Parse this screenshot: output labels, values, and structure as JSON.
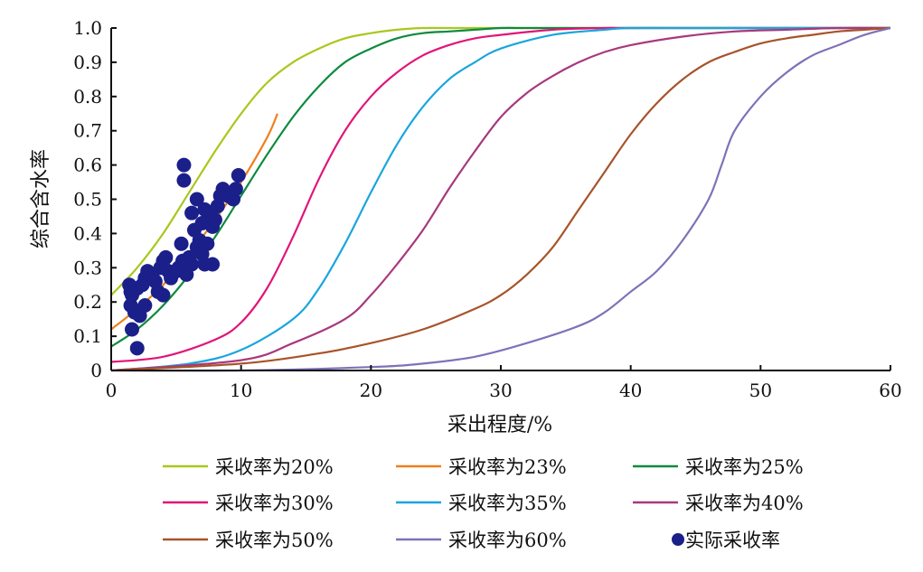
{
  "chart_data": {
    "type": "line",
    "xlabel": "采出程度/%",
    "ylabel": "综合含水率",
    "xlim": [
      0,
      60
    ],
    "ylim": [
      0,
      1.0
    ],
    "x_ticks": [
      "0",
      "10",
      "20",
      "30",
      "40",
      "50",
      "60"
    ],
    "y_ticks": [
      "0",
      "0.1",
      "0.2",
      "0.3",
      "0.4",
      "0.5",
      "0.6",
      "0.7",
      "0.8",
      "0.9",
      "1.0"
    ],
    "grid": false,
    "legend_position": "bottom",
    "series": [
      {
        "name": "采收率为20%",
        "color": "#a8c81e",
        "x": [
          0,
          2,
          4,
          6,
          8,
          10,
          12,
          14,
          16,
          18,
          20,
          22,
          24,
          26,
          28,
          30,
          40,
          50,
          60
        ],
        "y": [
          0.22,
          0.3,
          0.4,
          0.52,
          0.64,
          0.75,
          0.84,
          0.9,
          0.94,
          0.97,
          0.985,
          0.995,
          1.0,
          1.0,
          1.0,
          1.0,
          1.0,
          1.0,
          1.0
        ]
      },
      {
        "name": "采收率为23%",
        "color": "#f07f1c",
        "x": [
          0,
          2,
          4,
          6,
          8,
          10,
          12,
          12.8
        ],
        "y": [
          0.12,
          0.18,
          0.25,
          0.34,
          0.44,
          0.55,
          0.68,
          0.75
        ]
      },
      {
        "name": "采收率为25%",
        "color": "#0d8a3e",
        "x": [
          0,
          2,
          4,
          6,
          8,
          10,
          12,
          14,
          16,
          18,
          20,
          22,
          24,
          26,
          28,
          30,
          32,
          40,
          50,
          60
        ],
        "y": [
          0.07,
          0.12,
          0.19,
          0.28,
          0.39,
          0.51,
          0.63,
          0.74,
          0.83,
          0.9,
          0.94,
          0.97,
          0.985,
          0.99,
          0.995,
          1.0,
          1.0,
          1.0,
          1.0,
          1.0
        ]
      },
      {
        "name": "采收率为30%",
        "color": "#e0157a",
        "x": [
          0,
          4,
          8,
          10,
          12,
          14,
          16,
          18,
          20,
          22,
          24,
          26,
          28,
          30,
          34,
          38,
          40,
          50,
          60
        ],
        "y": [
          0.025,
          0.04,
          0.09,
          0.14,
          0.24,
          0.39,
          0.56,
          0.7,
          0.8,
          0.87,
          0.92,
          0.95,
          0.97,
          0.98,
          0.995,
          1.0,
          1.0,
          1.0,
          1.0
        ]
      },
      {
        "name": "采收率为35%",
        "color": "#19a6de",
        "x": [
          0,
          6,
          10,
          14,
          16,
          18,
          20,
          22,
          24,
          26,
          28,
          30,
          34,
          38,
          40,
          45,
          50,
          60
        ],
        "y": [
          0.0,
          0.02,
          0.06,
          0.15,
          0.24,
          0.37,
          0.52,
          0.66,
          0.77,
          0.85,
          0.9,
          0.94,
          0.98,
          0.995,
          1.0,
          1.0,
          1.0,
          1.0
        ]
      },
      {
        "name": "采收率为40%",
        "color": "#a8387e",
        "x": [
          0,
          10,
          14,
          18,
          20,
          22,
          24,
          26,
          28,
          30,
          32,
          34,
          36,
          38,
          40,
          44,
          48,
          52,
          56,
          60
        ],
        "y": [
          0.0,
          0.03,
          0.08,
          0.15,
          0.22,
          0.31,
          0.41,
          0.53,
          0.64,
          0.74,
          0.81,
          0.86,
          0.9,
          0.93,
          0.95,
          0.975,
          0.99,
          0.995,
          1.0,
          1.0
        ]
      },
      {
        "name": "采收率为50%",
        "color": "#a8532a",
        "x": [
          0,
          10,
          16,
          20,
          24,
          28,
          30,
          32,
          34,
          36,
          38,
          40,
          42,
          44,
          46,
          48,
          50,
          52,
          54,
          56,
          58,
          60
        ],
        "y": [
          0.0,
          0.02,
          0.05,
          0.08,
          0.12,
          0.18,
          0.22,
          0.28,
          0.36,
          0.47,
          0.58,
          0.69,
          0.78,
          0.85,
          0.9,
          0.93,
          0.955,
          0.97,
          0.98,
          0.99,
          0.995,
          1.0
        ]
      },
      {
        "name": "采收率为60%",
        "color": "#7e72b8",
        "x": [
          0,
          10,
          20,
          24,
          28,
          32,
          36,
          38,
          40,
          42,
          44,
          46,
          47,
          48,
          50,
          52,
          54,
          56,
          58,
          60
        ],
        "y": [
          0.0,
          0.0,
          0.01,
          0.02,
          0.04,
          0.08,
          0.13,
          0.17,
          0.23,
          0.29,
          0.38,
          0.5,
          0.6,
          0.7,
          0.8,
          0.87,
          0.92,
          0.95,
          0.98,
          1.0
        ]
      },
      {
        "name": "实际采收率",
        "type": "scatter",
        "color": "#1b1f8a",
        "points": [
          [
            1.4,
            0.25
          ],
          [
            1.5,
            0.23
          ],
          [
            1.5,
            0.19
          ],
          [
            1.6,
            0.22
          ],
          [
            1.6,
            0.12
          ],
          [
            1.8,
            0.17
          ],
          [
            2.0,
            0.24
          ],
          [
            2.0,
            0.065
          ],
          [
            2.2,
            0.16
          ],
          [
            2.4,
            0.25
          ],
          [
            2.6,
            0.19
          ],
          [
            2.6,
            0.27
          ],
          [
            2.8,
            0.29
          ],
          [
            3.0,
            0.28
          ],
          [
            3.2,
            0.27
          ],
          [
            3.4,
            0.26
          ],
          [
            3.6,
            0.23
          ],
          [
            3.8,
            0.3
          ],
          [
            4.0,
            0.22
          ],
          [
            4.0,
            0.32
          ],
          [
            4.2,
            0.33
          ],
          [
            4.4,
            0.29
          ],
          [
            4.6,
            0.27
          ],
          [
            5.0,
            0.29
          ],
          [
            5.2,
            0.3
          ],
          [
            5.4,
            0.37
          ],
          [
            5.5,
            0.32
          ],
          [
            5.6,
            0.6
          ],
          [
            5.6,
            0.555
          ],
          [
            5.8,
            0.28
          ],
          [
            6.0,
            0.33
          ],
          [
            6.2,
            0.31
          ],
          [
            6.2,
            0.46
          ],
          [
            6.4,
            0.41
          ],
          [
            6.6,
            0.36
          ],
          [
            6.6,
            0.5
          ],
          [
            6.8,
            0.38
          ],
          [
            7.0,
            0.34
          ],
          [
            7.0,
            0.43
          ],
          [
            7.2,
            0.47
          ],
          [
            7.2,
            0.31
          ],
          [
            7.4,
            0.37
          ],
          [
            7.6,
            0.46
          ],
          [
            7.8,
            0.31
          ],
          [
            7.8,
            0.42
          ],
          [
            8.0,
            0.44
          ],
          [
            8.2,
            0.48
          ],
          [
            8.4,
            0.51
          ],
          [
            8.6,
            0.53
          ],
          [
            9.0,
            0.51
          ],
          [
            9.4,
            0.5
          ],
          [
            9.6,
            0.53
          ],
          [
            9.8,
            0.57
          ]
        ]
      }
    ]
  }
}
